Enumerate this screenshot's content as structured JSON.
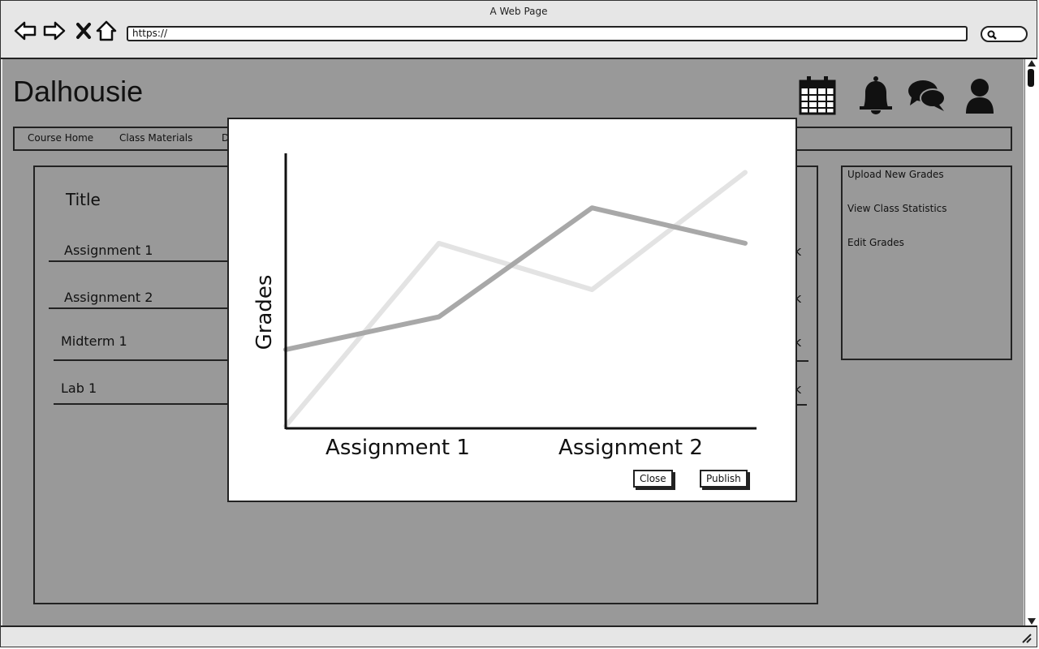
{
  "window": {
    "title": "A Web Page"
  },
  "browser": {
    "url": "https://"
  },
  "app": {
    "brand": "Dalhousie"
  },
  "tabs": [
    {
      "label": "Course Home"
    },
    {
      "label": "Class Materials"
    },
    {
      "label": "D"
    }
  ],
  "main": {
    "title": "Title",
    "rows": [
      {
        "label": "Assignment 1",
        "mark": "k"
      },
      {
        "label": "Assignment 2",
        "mark": "k"
      },
      {
        "label": "Midterm 1",
        "mark": "k"
      },
      {
        "label": "Lab 1",
        "mark": "k"
      }
    ]
  },
  "sidebar": {
    "links": [
      {
        "label": "Upload New Grades"
      },
      {
        "label": "View Class Statistics"
      },
      {
        "label": "Edit Grades"
      }
    ]
  },
  "icons": {
    "nav": [
      "back-icon",
      "forward-icon",
      "stop-icon",
      "home-icon"
    ],
    "top": [
      "calendar-icon",
      "bell-icon",
      "chat-icon",
      "user-icon"
    ]
  },
  "modal": {
    "close_label": "Close",
    "publish_label": "Publish"
  },
  "chart_data": {
    "type": "line",
    "ylabel": "Grades",
    "xlabel": "",
    "tick_labels": [
      "Assignment 1",
      "Assignment 2"
    ],
    "x": [
      0,
      1,
      2,
      3
    ],
    "ylim": [
      0,
      100
    ],
    "series": [
      {
        "color": "#a8a8a8",
        "values": [
          28,
          40,
          80,
          67
        ]
      },
      {
        "color": "#e3e3e3",
        "values": [
          0,
          67,
          50,
          93
        ]
      }
    ]
  }
}
